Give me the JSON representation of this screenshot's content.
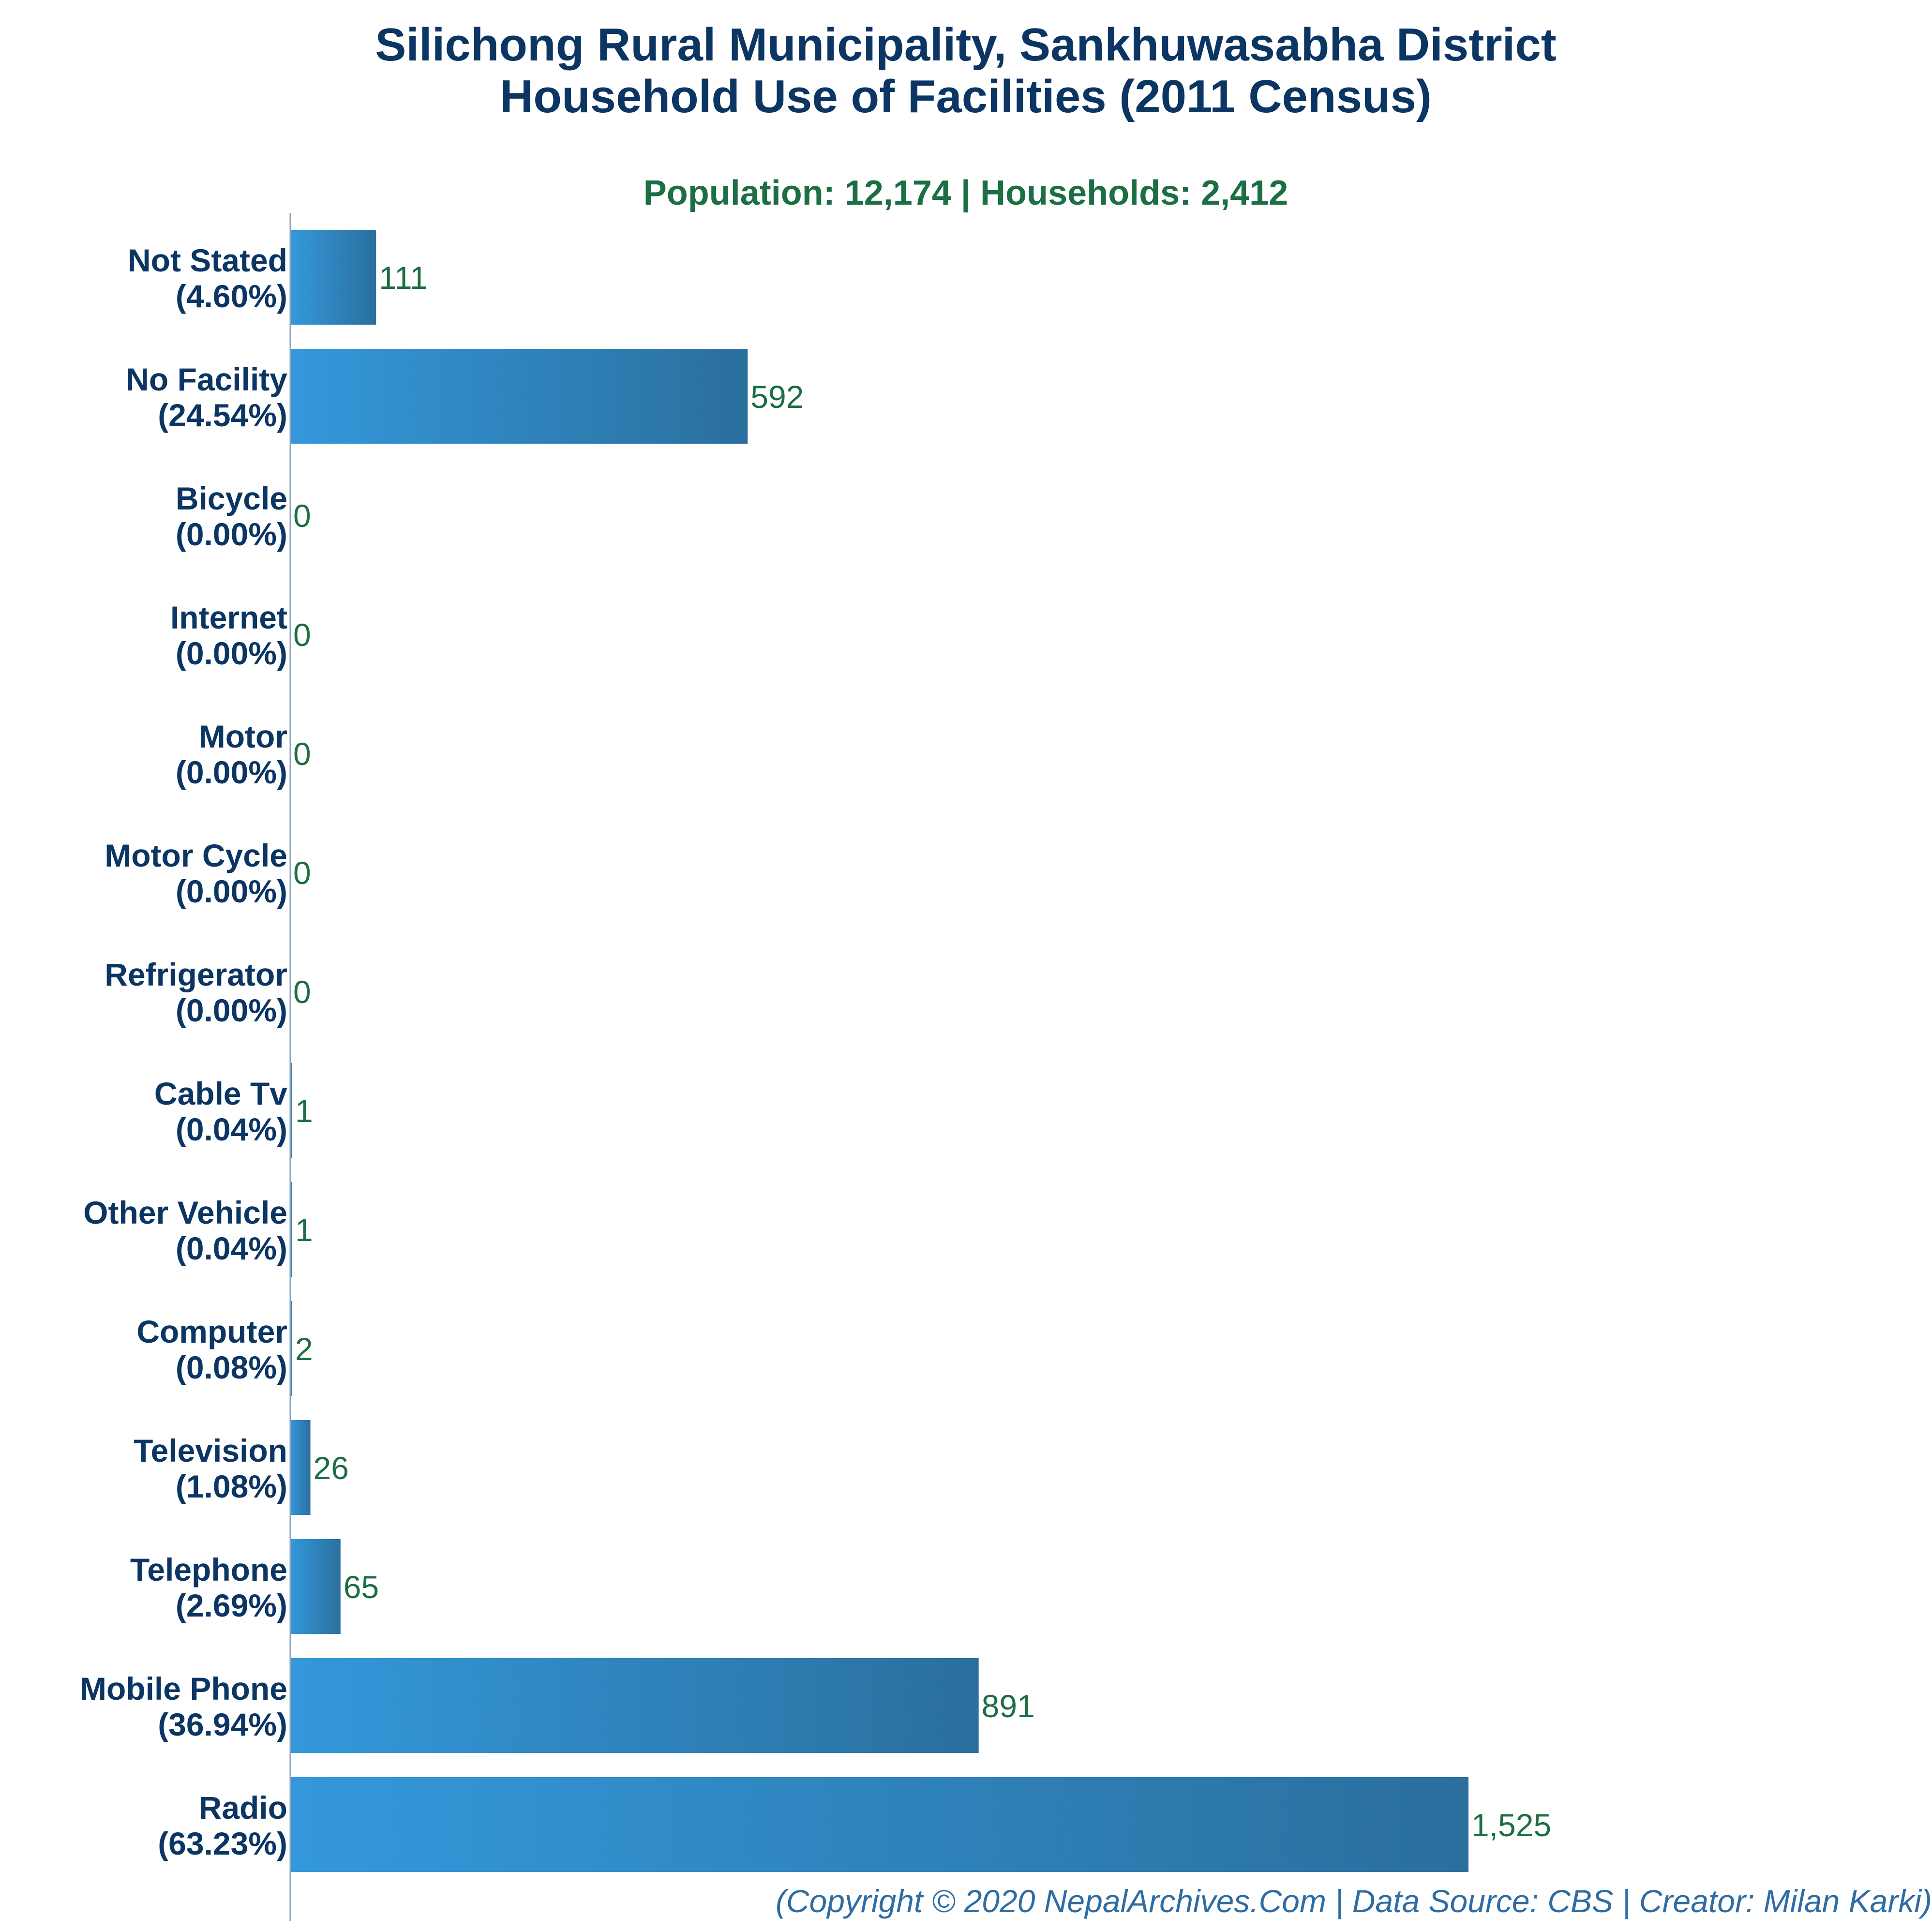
{
  "chart_data": {
    "type": "bar",
    "orientation": "horizontal",
    "title": "Silichong Rural Municipality, Sankhuwasabha District",
    "title_line2": "Household Use of Facilities (2011 Census)",
    "subtitle": "Population: 12,174 | Households: 2,412",
    "categories": [
      "Not Stated",
      "No Facility",
      "Bicycle",
      "Internet",
      "Motor",
      "Motor Cycle",
      "Refrigerator",
      "Cable Tv",
      "Other Vehicle",
      "Computer",
      "Television",
      "Telephone",
      "Mobile Phone",
      "Radio"
    ],
    "percent_labels": [
      "(4.60%)",
      "(24.54%)",
      "(0.00%)",
      "(0.00%)",
      "(0.00%)",
      "(0.00%)",
      "(0.00%)",
      "(0.04%)",
      "(0.04%)",
      "(0.08%)",
      "(1.08%)",
      "(2.69%)",
      "(36.94%)",
      "(63.23%)"
    ],
    "values": [
      111,
      592,
      0,
      0,
      0,
      0,
      0,
      1,
      1,
      2,
      26,
      65,
      891,
      1525
    ],
    "value_labels": [
      "111",
      "592",
      "0",
      "0",
      "0",
      "0",
      "0",
      "1",
      "1",
      "2",
      "26",
      "65",
      "891",
      "1,525"
    ],
    "xlim": [
      0,
      1650
    ],
    "grid": false,
    "legend": "none",
    "footer": "(Copyright © 2020 NepalArchives.Com | Data Source: CBS | Creator: Milan Karki)",
    "colors": {
      "bar_start": "#3498db",
      "bar_end": "#2a6f9e",
      "title": "#0b3563",
      "subtitle": "#1c6e43",
      "category_label": "#0b3563",
      "value_label": "#1c6e43",
      "footer": "#2e6da4",
      "axis": "#8aa3b8"
    }
  }
}
